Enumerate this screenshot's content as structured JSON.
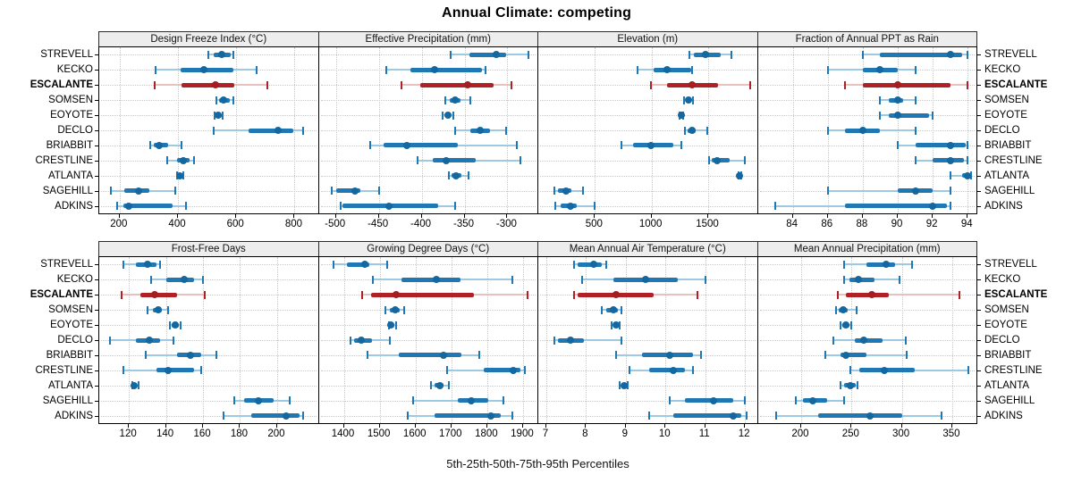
{
  "title": "Annual Climate: competing",
  "caption": "5th-25th-50th-75th-95th Percentiles",
  "sites": [
    "STREVELL",
    "KECKO",
    "ESCALANTE",
    "SOMSEN",
    "EOYOTE",
    "DECLO",
    "BRIABBIT",
    "CRESTLINE",
    "ATLANTA",
    "SAGEHILL",
    "ADKINS"
  ],
  "highlight_site": "ESCALANTE",
  "colors": {
    "blue_bar": "#1f77b4",
    "blue_light": "#9ec9e2",
    "blue_dot": "#15679f",
    "red_bar": "#b02126",
    "red_light": "#e8c0be",
    "red_dot": "#a31d22",
    "grid": "#c9c9c9",
    "strip_bg": "#ededed",
    "panel_border": "#000000"
  },
  "chart_data": {
    "type": "scatter",
    "variant": "trellis percentile dot plot (5th-25th-50th-75th-95th), horizontal whiskers per site",
    "percentiles": [
      5,
      25,
      50,
      75,
      95
    ],
    "rows": [
      "STREVELL",
      "KECKO",
      "ESCALANTE",
      "SOMSEN",
      "EOYOTE",
      "DECLO",
      "BRIABBIT",
      "CRESTLINE",
      "ATLANTA",
      "SAGEHILL",
      "ADKINS"
    ],
    "legend_position": "none",
    "grid": "dotted",
    "panels": [
      {
        "title": "Design Freeze Index (°C)",
        "xlim": [
          130,
          880
        ],
        "ticks": [
          200,
          400,
          600,
          800
        ],
        "values": [
          [
            505,
            522,
            549,
            580,
            591
          ],
          [
            323,
            410,
            488,
            590,
            670
          ],
          [
            320,
            411,
            530,
            594,
            706
          ],
          [
            531,
            542,
            557,
            577,
            589
          ],
          [
            527,
            534,
            539,
            549,
            553
          ],
          [
            522,
            642,
            742,
            796,
            828
          ],
          [
            305,
            317,
            335,
            366,
            411
          ],
          [
            362,
            396,
            419,
            441,
            456
          ],
          [
            396,
            402,
            407,
            413,
            418
          ],
          [
            170,
            215,
            266,
            302,
            392
          ],
          [
            191,
            212,
            231,
            381,
            429
          ]
        ]
      },
      {
        "title": "Effective Precipitation (mm)",
        "xlim": [
          -520,
          -265
        ],
        "ticks": [
          -500,
          -450,
          -400,
          -350,
          -300
        ],
        "values": [
          [
            -366,
            -344,
            -313,
            -302,
            -275
          ],
          [
            -441,
            -413,
            -385,
            -330,
            -325
          ],
          [
            -424,
            -402,
            -346,
            -316,
            -295
          ],
          [
            -372,
            -367,
            -361,
            -355,
            -343
          ],
          [
            -376,
            -372,
            -369,
            -366,
            -363
          ],
          [
            -361,
            -343,
            -332,
            -320,
            -302
          ],
          [
            -460,
            -444,
            -417,
            -358,
            -289
          ],
          [
            -405,
            -387,
            -371,
            -337,
            -285
          ],
          [
            -368,
            -365,
            -360,
            -354,
            -345
          ],
          [
            -505,
            -500,
            -478,
            -472,
            -450
          ],
          [
            -494,
            -492,
            -438,
            -381,
            -361
          ]
        ]
      },
      {
        "title": "Elevation (m)",
        "xlim": [
          0,
          1930
        ],
        "ticks": [
          500,
          1000,
          1500
        ],
        "values": [
          [
            1335,
            1376,
            1474,
            1614,
            1707
          ],
          [
            873,
            1017,
            1138,
            1349,
            1355
          ],
          [
            992,
            1138,
            1357,
            1587,
            1871
          ],
          [
            1283,
            1300,
            1323,
            1345,
            1362
          ],
          [
            1248,
            1255,
            1262,
            1268,
            1275
          ],
          [
            1294,
            1317,
            1357,
            1389,
            1492
          ],
          [
            738,
            833,
            992,
            1190,
            1262
          ],
          [
            1508,
            1532,
            1580,
            1690,
            1825
          ],
          [
            1765,
            1772,
            1778,
            1785,
            1792
          ],
          [
            143,
            172,
            246,
            291,
            397
          ],
          [
            151,
            198,
            286,
            341,
            497
          ]
        ]
      },
      {
        "title": "Fraction of Annual PPT as Rain",
        "xlim": [
          82,
          94.5
        ],
        "ticks": [
          84,
          86,
          88,
          90,
          92,
          94
        ],
        "values": [
          [
            88,
            89,
            93,
            93.7,
            94
          ],
          [
            86,
            88,
            89,
            90,
            91
          ],
          [
            87,
            88,
            90,
            93,
            94
          ],
          [
            89,
            89.5,
            90,
            90.3,
            91
          ],
          [
            89,
            89.5,
            90,
            91.8,
            92
          ],
          [
            86,
            87,
            88,
            89,
            91
          ],
          [
            90,
            91,
            93,
            93.9,
            94
          ],
          [
            91,
            92,
            93,
            93.8,
            94
          ],
          [
            93,
            93.7,
            94,
            94.1,
            94.2
          ],
          [
            86,
            90,
            91,
            92,
            93
          ],
          [
            83,
            87,
            92,
            92.8,
            93
          ]
        ]
      },
      {
        "title": "Frost-Free Days",
        "xlim": [
          104,
          222
        ],
        "ticks": [
          120,
          140,
          160,
          180,
          200
        ],
        "values": [
          [
            117,
            124,
            130,
            135,
            137
          ],
          [
            132,
            140,
            150,
            155,
            160
          ],
          [
            116,
            126,
            134,
            146,
            161
          ],
          [
            130,
            133,
            136,
            138,
            141
          ],
          [
            142,
            143,
            145,
            147,
            148
          ],
          [
            110,
            124,
            131,
            137,
            144
          ],
          [
            129,
            146,
            153,
            159,
            167
          ],
          [
            117,
            135,
            141,
            155,
            159
          ],
          [
            122,
            122.5,
            123,
            124,
            125
          ],
          [
            177,
            182,
            190,
            198,
            207
          ],
          [
            171,
            186,
            205,
            212,
            214
          ]
        ]
      },
      {
        "title": "Growing Degree Days (°C)",
        "xlim": [
          1330,
          1940
        ],
        "ticks": [
          1400,
          1500,
          1600,
          1700,
          1800,
          1900
        ],
        "values": [
          [
            1370,
            1408,
            1458,
            1471,
            1522
          ],
          [
            1482,
            1562,
            1658,
            1725,
            1871
          ],
          [
            1452,
            1475,
            1547,
            1762,
            1912
          ],
          [
            1517,
            1529,
            1544,
            1556,
            1569
          ],
          [
            1525,
            1530,
            1532,
            1542,
            1547
          ],
          [
            1419,
            1429,
            1448,
            1479,
            1529
          ],
          [
            1465,
            1554,
            1677,
            1729,
            1779
          ],
          [
            1688,
            1790,
            1872,
            1893,
            1905
          ],
          [
            1644,
            1654,
            1667,
            1679,
            1692
          ],
          [
            1594,
            1718,
            1756,
            1804,
            1844
          ],
          [
            1579,
            1654,
            1811,
            1838,
            1871
          ]
        ]
      },
      {
        "title": "Mean Annual Air Temperature (°C)",
        "xlim": [
          6.8,
          12.3
        ],
        "ticks": [
          7,
          8,
          9,
          10,
          11,
          12
        ],
        "values": [
          [
            7.7,
            7.8,
            8.2,
            8.4,
            8.5
          ],
          [
            7.9,
            8.7,
            9.5,
            10.3,
            11.0
          ],
          [
            7.7,
            7.8,
            8.75,
            9.7,
            10.8
          ],
          [
            8.4,
            8.5,
            8.7,
            8.8,
            8.9
          ],
          [
            8.65,
            8.7,
            8.75,
            8.8,
            8.85
          ],
          [
            7.2,
            7.3,
            7.6,
            7.95,
            8.9
          ],
          [
            8.75,
            9.4,
            10.1,
            10.7,
            10.9
          ],
          [
            9.1,
            9.6,
            10.2,
            10.5,
            10.7
          ],
          [
            8.85,
            8.9,
            8.95,
            9.0,
            9.05
          ],
          [
            10.1,
            10.5,
            11.2,
            11.7,
            12.0
          ],
          [
            9.6,
            10.2,
            11.7,
            11.9,
            12.05
          ]
        ]
      },
      {
        "title": "Mean Annual Precipitation (mm)",
        "xlim": [
          157,
          374
        ],
        "ticks": [
          200,
          250,
          300,
          350
        ],
        "values": [
          [
            243,
            265,
            284,
            293,
            310
          ],
          [
            243,
            248,
            257,
            273,
            298
          ],
          [
            236,
            244,
            270,
            287,
            357
          ],
          [
            235,
            237,
            242,
            246,
            255
          ],
          [
            239,
            241,
            244,
            248,
            250
          ],
          [
            232,
            253,
            262,
            281,
            304
          ],
          [
            224,
            239,
            244,
            265,
            305
          ],
          [
            249,
            258,
            283,
            313,
            366
          ],
          [
            239,
            243,
            249,
            254,
            256
          ],
          [
            195,
            202,
            212,
            226,
            243
          ],
          [
            175,
            217,
            268,
            300,
            339
          ]
        ]
      }
    ]
  }
}
